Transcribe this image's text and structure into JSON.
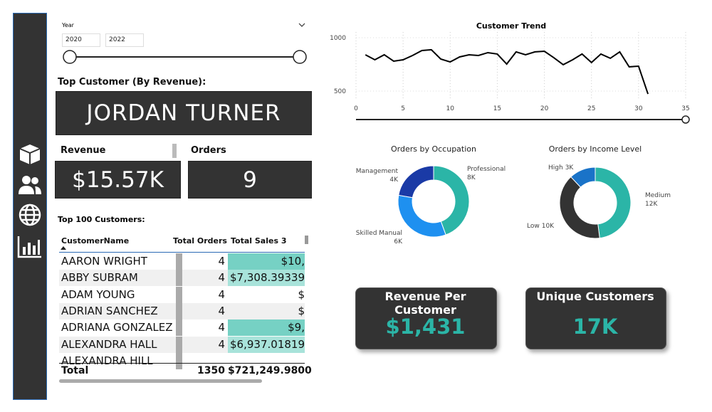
{
  "slicer": {
    "label": "Year",
    "from": "2020",
    "to": "2022"
  },
  "top_customer": {
    "title": "Top Customer (By Revenue):",
    "name": "JORDAN TURNER"
  },
  "revenue": {
    "label": "Revenue",
    "value": "$15.57K"
  },
  "orders": {
    "label": "Orders",
    "value": "9"
  },
  "table": {
    "title": "Top 100 Customers:",
    "columns": [
      "CustomerName",
      "Total Orders",
      "Total Sales 3"
    ],
    "rows": [
      [
        "AARON WRIGHT",
        4,
        "$10,"
      ],
      [
        "ABBY SUBRAM",
        4,
        "$7,308.39339"
      ],
      [
        "ADAM YOUNG",
        4,
        "$"
      ],
      [
        "ADRIAN SANCHEZ",
        4,
        "$"
      ],
      [
        "ADRIANA GONZALEZ",
        4,
        "$9,"
      ],
      [
        "ALEXANDRA HALL",
        4,
        "$6,937.01819"
      ],
      [
        "ALEXANDRA HILL"
      ]
    ],
    "total": [
      "Total",
      1350,
      "$721,249.9800"
    ]
  },
  "charts": [
    {
      "type": "line",
      "title": "Customer Trend",
      "color": "#000000",
      "x": [
        1,
        2,
        3,
        4,
        5,
        6,
        7,
        8,
        9,
        10,
        11,
        12,
        13,
        14,
        15,
        16,
        17,
        18,
        19,
        20,
        21,
        22,
        23,
        24,
        25,
        26,
        27,
        28,
        29,
        30,
        31
      ],
      "values": [
        840,
        793,
        840,
        780,
        793,
        833,
        880,
        887,
        800,
        773,
        820,
        840,
        833,
        860,
        847,
        753,
        867,
        840,
        867,
        873,
        813,
        747,
        793,
        847,
        767,
        847,
        807,
        867,
        727,
        733,
        473
      ],
      "xlim": [
        0,
        35
      ],
      "xticks": [
        0,
        5,
        10,
        15,
        20,
        25,
        30,
        35
      ],
      "ylim": [
        420,
        1053
      ],
      "yticks": [
        500,
        1000
      ],
      "grid": true
    },
    {
      "type": "donut",
      "title": "Orders by Occupation",
      "categories": [
        "Professional",
        "Skilled Manual",
        "Management"
      ],
      "values": [
        8000,
        6000,
        4000
      ],
      "value_labels": [
        "8K",
        "6K",
        "4K"
      ],
      "colors": [
        "#2bb5a7",
        "#1e90f0",
        "#1a3aa6"
      ]
    },
    {
      "type": "donut",
      "title": "Orders by Income Level",
      "categories": [
        "Medium",
        "Low",
        "High"
      ],
      "values": [
        12000,
        10000,
        3000
      ],
      "value_labels": [
        "12K",
        "10K",
        "3K"
      ],
      "colors": [
        "#2bb5a7",
        "#333333",
        "#1a73c8"
      ]
    }
  ],
  "kpis": [
    {
      "title": "Revenue Per Customer",
      "value": "$1,431"
    },
    {
      "title": "Unique Customers",
      "value": "17K"
    }
  ]
}
